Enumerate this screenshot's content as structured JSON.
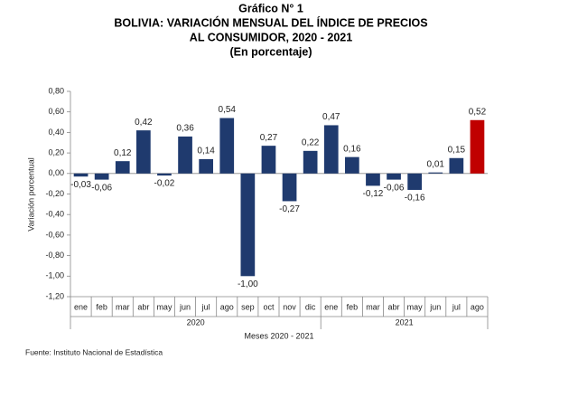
{
  "chart_data": {
    "type": "bar",
    "title": [
      "Gráfico N° 1",
      "BOLIVIA: VARIACIÓN MENSUAL DEL ÍNDICE DE PRECIOS",
      "AL CONSUMIDOR, 2020 - 2021"
    ],
    "subtitle": "(En porcentaje)",
    "y_label": "Variación porcentual",
    "x_label": "Meses 2020 - 2021",
    "source": "Fuente: Instituto Nacional de Estadística",
    "categories": [
      "ene",
      "feb",
      "mar",
      "abr",
      "may",
      "jun",
      "jul",
      "ago",
      "sep",
      "oct",
      "nov",
      "dic",
      "ene",
      "feb",
      "mar",
      "abr",
      "may",
      "jun",
      "jul",
      "ago"
    ],
    "category_groups": [
      "2020",
      "2020",
      "2020",
      "2020",
      "2020",
      "2020",
      "2020",
      "2020",
      "2020",
      "2020",
      "2020",
      "2020",
      "2021",
      "2021",
      "2021",
      "2021",
      "2021",
      "2021",
      "2021",
      "2021"
    ],
    "values": [
      -0.03,
      -0.06,
      0.12,
      0.42,
      -0.02,
      0.36,
      0.14,
      0.54,
      -1.0,
      0.27,
      -0.27,
      0.22,
      0.47,
      0.16,
      -0.12,
      -0.06,
      -0.16,
      0.01,
      0.15,
      0.52
    ],
    "value_labels": [
      "-0,03",
      "-0,06",
      "0,12",
      "0,42",
      "-0,02",
      "0,36",
      "0,14",
      "0,54",
      "-1,00",
      "0,27",
      "-0,27",
      "0,22",
      "0,47",
      "0,16",
      "-0,12",
      "-0,06",
      "-0,16",
      "0,01",
      "0,15",
      "0,52"
    ],
    "colors": [
      "#1f3a6e",
      "#1f3a6e",
      "#1f3a6e",
      "#1f3a6e",
      "#1f3a6e",
      "#1f3a6e",
      "#1f3a6e",
      "#1f3a6e",
      "#1f3a6e",
      "#1f3a6e",
      "#1f3a6e",
      "#1f3a6e",
      "#1f3a6e",
      "#1f3a6e",
      "#1f3a6e",
      "#1f3a6e",
      "#1f3a6e",
      "#1f3a6e",
      "#1f3a6e",
      "#c00000"
    ],
    "ylim": [
      -1.2,
      0.8
    ],
    "yticks": [
      {
        "value": 0.8,
        "label": "0,80"
      },
      {
        "value": 0.6,
        "label": "0,60"
      },
      {
        "value": 0.4,
        "label": "0,40"
      },
      {
        "value": 0.2,
        "label": "0,20"
      },
      {
        "value": 0,
        "label": "0,00"
      },
      {
        "value": -0.2,
        "label": "-0,20"
      },
      {
        "value": -0.4,
        "label": "-0,40"
      },
      {
        "value": -0.6,
        "label": "-0,60"
      },
      {
        "value": -0.8,
        "label": "-0,80"
      },
      {
        "value": -1.0,
        "label": "-1,00"
      },
      {
        "value": -1.2,
        "label": "-1,20"
      }
    ],
    "grid": false
  }
}
